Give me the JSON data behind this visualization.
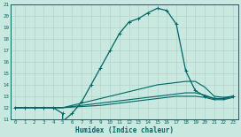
{
  "xlabel": "Humidex (Indice chaleur)",
  "xlim": [
    -0.5,
    23.5
  ],
  "ylim": [
    11,
    21
  ],
  "xticks": [
    0,
    1,
    2,
    3,
    4,
    5,
    6,
    7,
    8,
    9,
    10,
    11,
    12,
    13,
    14,
    15,
    16,
    17,
    18,
    19,
    20,
    21,
    22,
    23
  ],
  "yticks": [
    11,
    12,
    13,
    14,
    15,
    16,
    17,
    18,
    19,
    20,
    21
  ],
  "background_color": "#c8e8e0",
  "grid_color": "#b0d4cc",
  "line_color": "#006666",
  "line1_x": [
    0,
    1,
    2,
    3,
    4,
    5,
    5,
    6,
    7,
    8,
    9,
    10,
    11,
    12,
    13,
    14,
    15,
    16,
    17,
    18,
    19,
    20,
    21,
    22,
    23
  ],
  "line1_y": [
    12,
    12,
    12,
    12,
    12,
    11.5,
    10.8,
    11.5,
    12.5,
    14.0,
    15.5,
    17.0,
    18.5,
    19.5,
    19.8,
    20.3,
    20.7,
    20.5,
    19.3,
    15.2,
    13.5,
    13.0,
    12.8,
    12.8,
    13.0
  ],
  "line2_x": [
    0,
    1,
    2,
    3,
    4,
    5,
    6,
    7,
    8,
    9,
    10,
    11,
    12,
    13,
    14,
    15,
    16,
    17,
    18,
    19,
    20,
    21,
    22,
    23
  ],
  "line2_y": [
    12,
    12,
    12,
    12,
    12,
    12.0,
    12.2,
    12.4,
    12.6,
    12.8,
    13.0,
    13.2,
    13.4,
    13.6,
    13.8,
    14.0,
    14.1,
    14.2,
    14.3,
    14.3,
    13.8,
    13.0,
    12.9,
    13.0
  ],
  "line3_x": [
    0,
    1,
    2,
    3,
    4,
    5,
    6,
    7,
    8,
    9,
    10,
    11,
    12,
    13,
    14,
    15,
    16,
    17,
    18,
    19,
    20,
    21,
    22,
    23
  ],
  "line3_y": [
    12,
    12,
    12,
    12,
    12,
    12.0,
    12.1,
    12.2,
    12.3,
    12.4,
    12.5,
    12.6,
    12.7,
    12.8,
    12.9,
    13.0,
    13.1,
    13.2,
    13.3,
    13.3,
    13.1,
    12.8,
    12.8,
    13.0
  ],
  "line4_x": [
    0,
    1,
    2,
    3,
    4,
    5,
    6,
    7,
    8,
    9,
    10,
    11,
    12,
    13,
    14,
    15,
    16,
    17,
    18,
    19,
    20,
    21,
    22,
    23
  ],
  "line4_y": [
    12,
    12,
    12,
    12,
    12,
    12.0,
    12.05,
    12.1,
    12.15,
    12.2,
    12.3,
    12.4,
    12.5,
    12.6,
    12.7,
    12.8,
    12.9,
    13.0,
    13.0,
    13.0,
    12.9,
    12.7,
    12.7,
    12.9
  ]
}
